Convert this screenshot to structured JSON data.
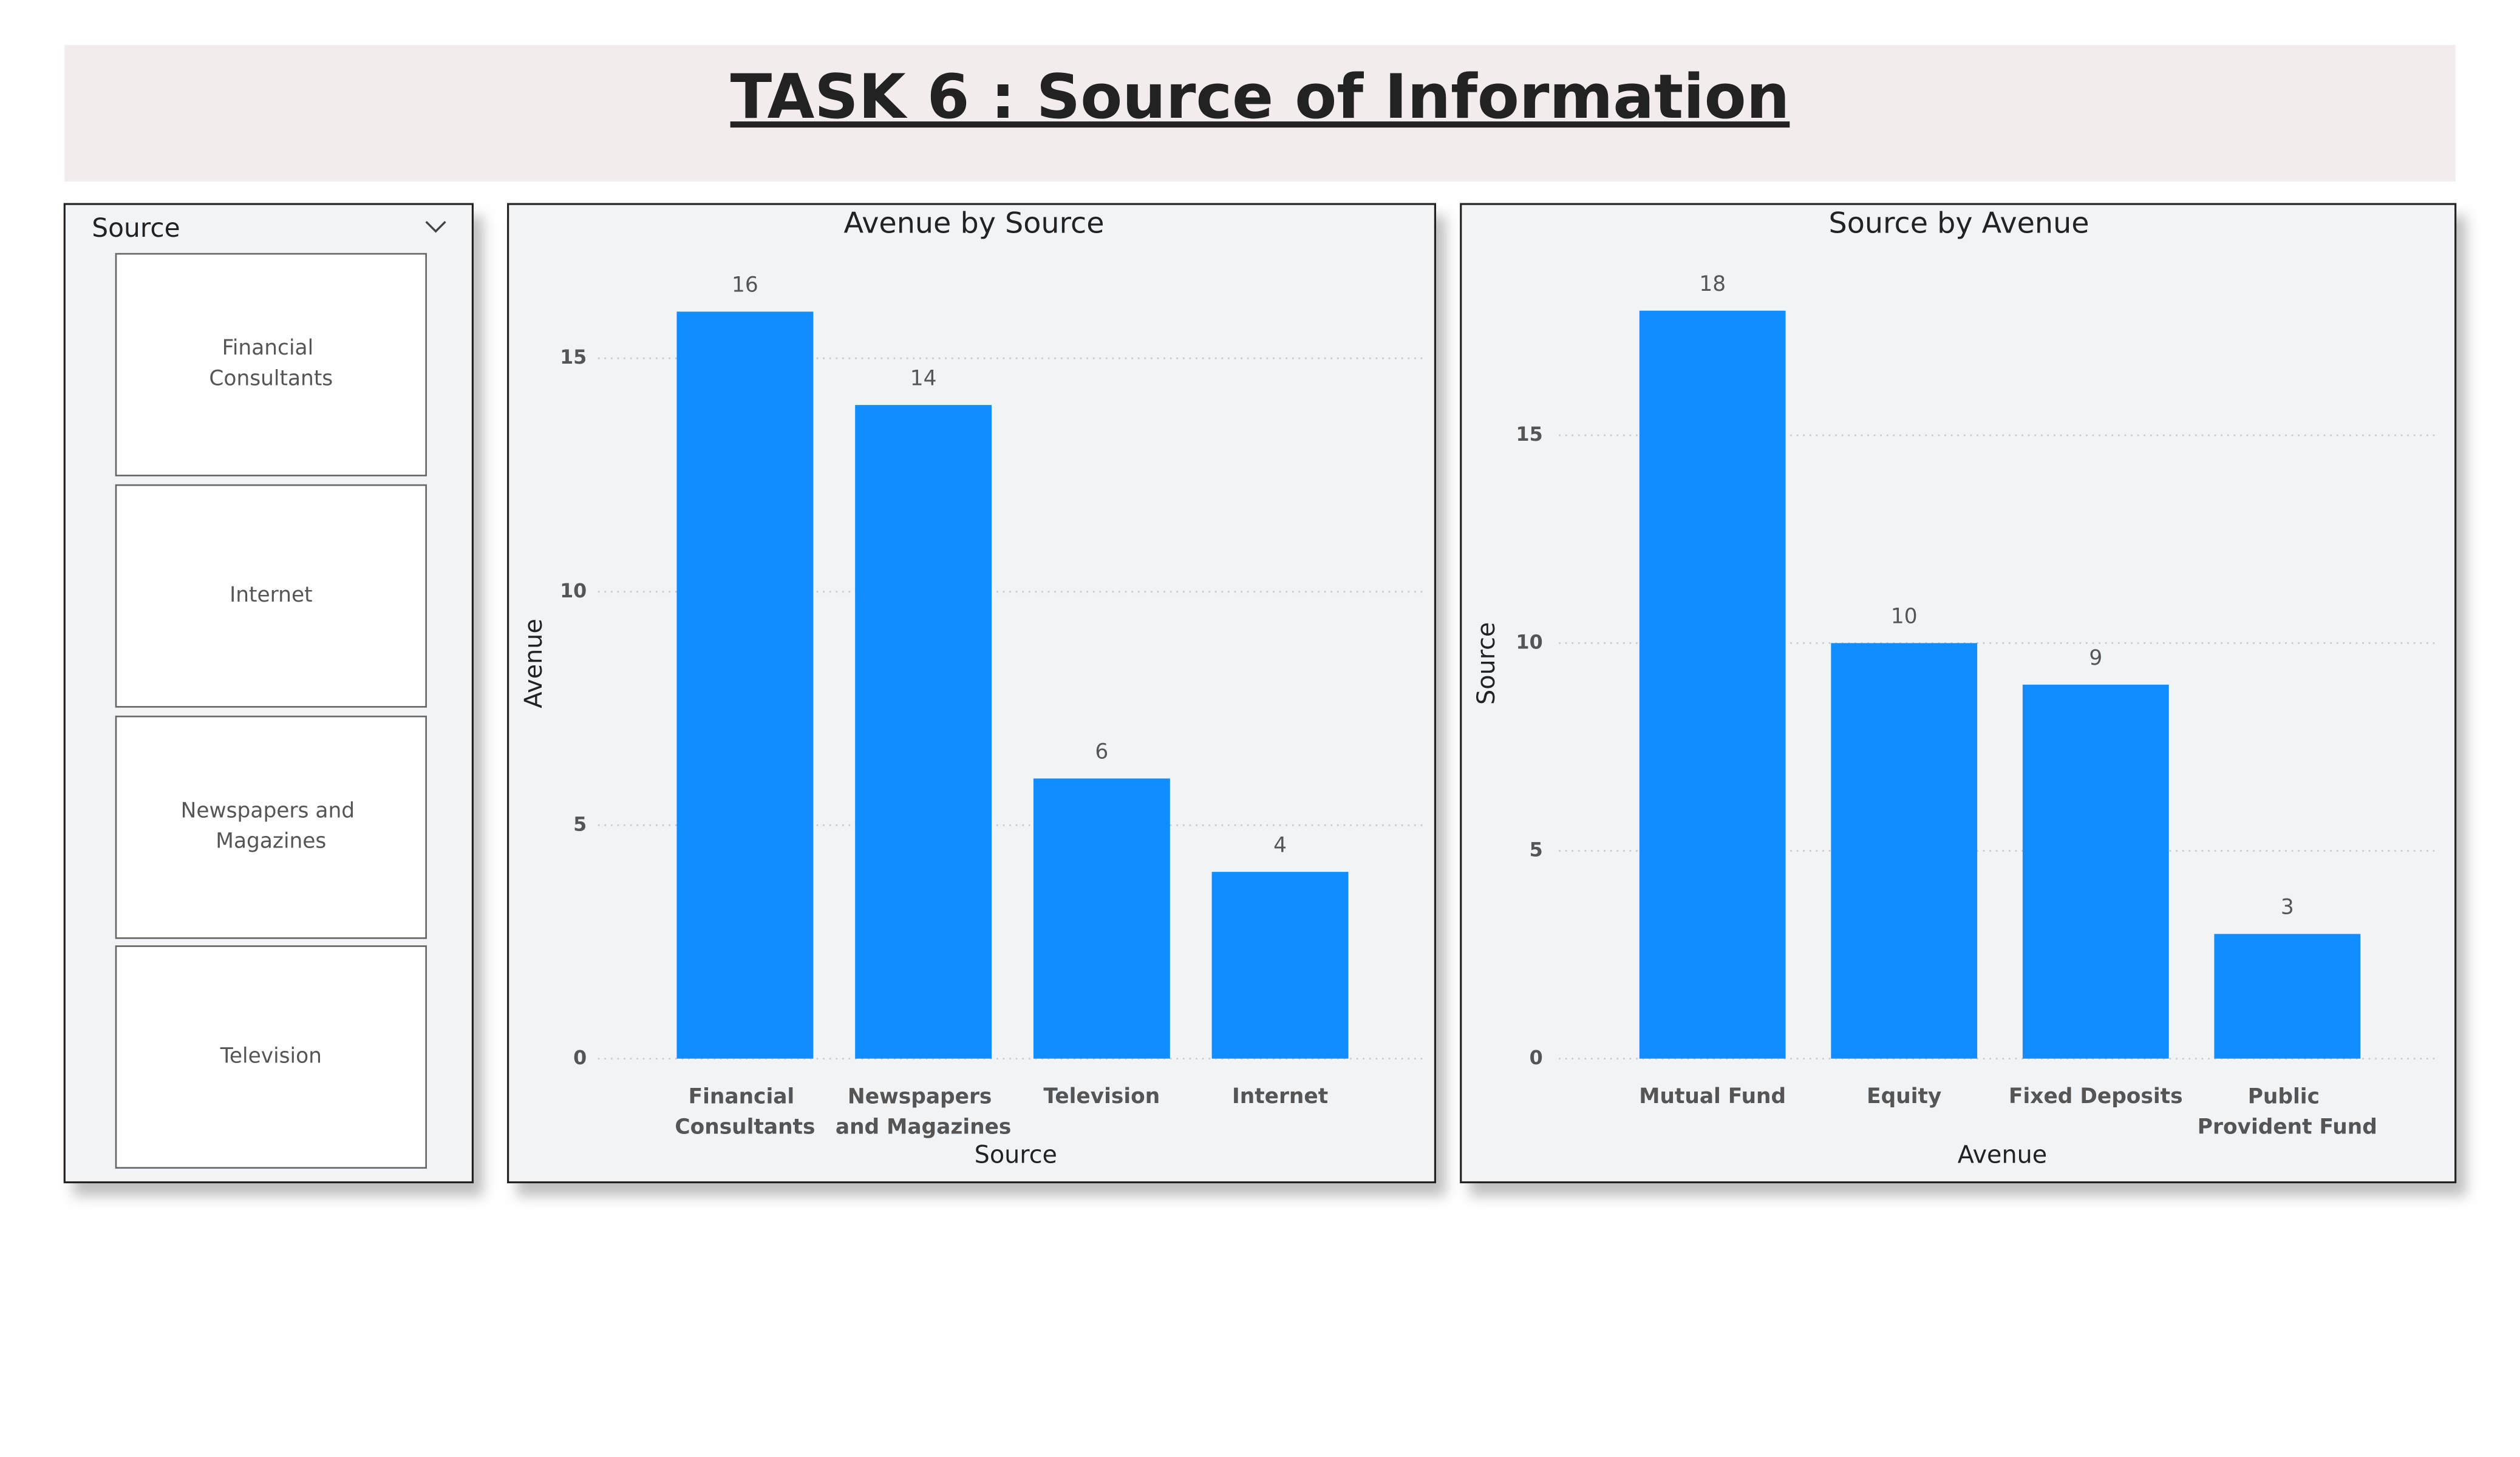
{
  "header": {
    "title": "TASK 6 : Source of Information"
  },
  "slicer": {
    "title": "Source",
    "items": [
      "Financial Consultants",
      "Internet",
      "Newspapers and Magazines",
      "Television"
    ]
  },
  "chart_data": [
    {
      "type": "bar",
      "title": "Avenue by Source",
      "x_label": "Source",
      "y_label": "Avenue",
      "categories": [
        "Financial Consultants",
        "Newspapers and Magazines",
        "Television",
        "Internet"
      ],
      "values": [
        16,
        14,
        6,
        4
      ],
      "color": "#118dff",
      "ylim": [
        0,
        16
      ],
      "yticks": [
        0,
        5,
        10,
        15
      ],
      "grid": true
    },
    {
      "type": "bar",
      "title": "Source by Avenue",
      "x_label": "Avenue",
      "y_label": "Source",
      "categories": [
        "Mutual Fund",
        "Equity",
        "Fixed Deposits",
        "Public Provident Fund"
      ],
      "values": [
        18,
        10,
        9,
        3
      ],
      "color": "#118dff",
      "ylim": [
        0,
        18
      ],
      "yticks": [
        0,
        5,
        10,
        15
      ],
      "grid": true
    }
  ]
}
